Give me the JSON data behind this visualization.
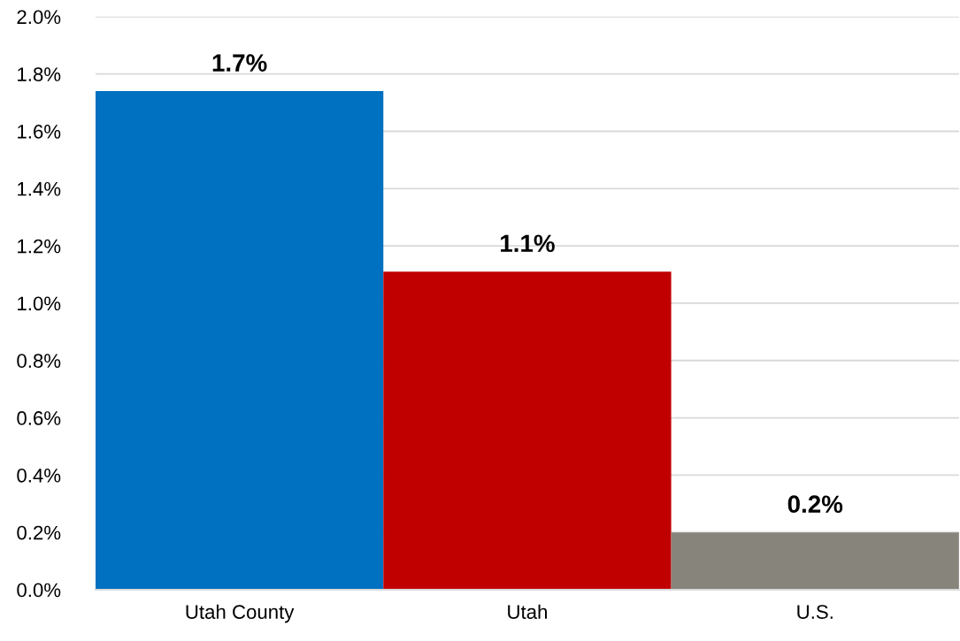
{
  "chart_data": {
    "type": "bar",
    "categories": [
      "Utah County",
      "Utah",
      "U.S."
    ],
    "values": [
      1.74,
      1.11,
      0.2
    ],
    "colors": [
      "#0070c0",
      "#c00000",
      "#86847b"
    ],
    "value_labels": [
      "1.7%",
      "1.1%",
      "0.2%"
    ],
    "ylim": [
      0,
      2.0
    ],
    "yticks": [
      {
        "value": 0,
        "label": "0.0%"
      },
      {
        "value": 0.2,
        "label": "0.2%"
      },
      {
        "value": 0.4,
        "label": "0.4%"
      },
      {
        "value": 0.6,
        "label": "0.6%"
      },
      {
        "value": 0.8,
        "label": "0.8%"
      },
      {
        "value": 1.0,
        "label": "1.0%"
      },
      {
        "value": 1.2,
        "label": "1.2%"
      },
      {
        "value": 1.4,
        "label": "1.4%"
      },
      {
        "value": 1.6,
        "label": "1.6%"
      },
      {
        "value": 1.8,
        "label": "1.8%"
      },
      {
        "value": 2.0,
        "label": "2.0%"
      }
    ],
    "grid": "y",
    "legend": false
  }
}
